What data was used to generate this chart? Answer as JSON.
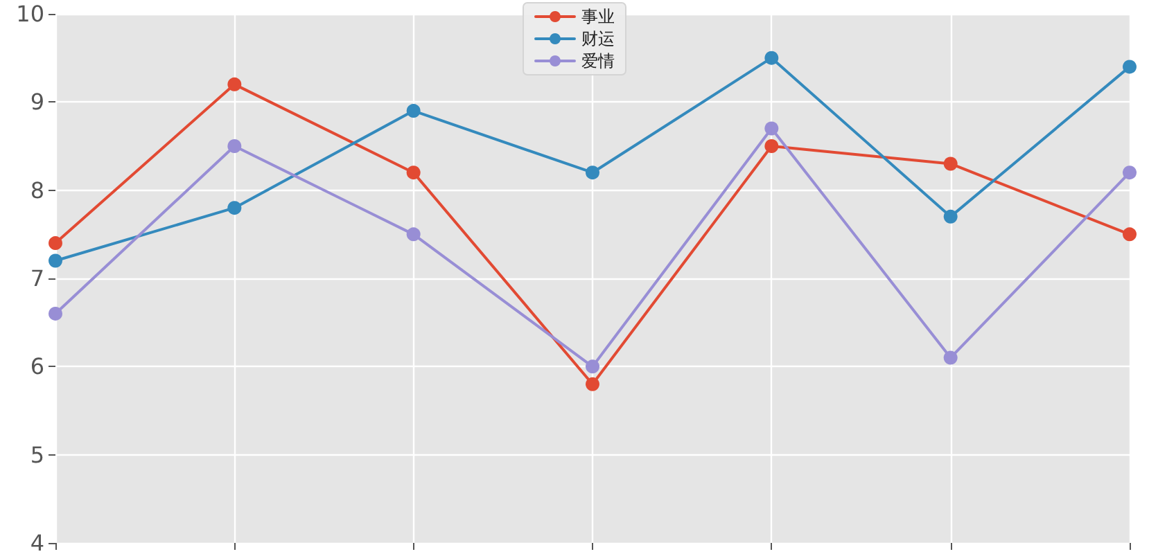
{
  "chart_data": {
    "type": "line",
    "categories": [
      null,
      null,
      null,
      null,
      null,
      null,
      null
    ],
    "series": [
      {
        "name": "事业",
        "color": "#e24a33",
        "values": [
          7.4,
          9.2,
          8.2,
          5.8,
          8.5,
          8.3,
          7.5
        ]
      },
      {
        "name": "财运",
        "color": "#348abd",
        "values": [
          7.2,
          7.8,
          8.9,
          8.2,
          9.5,
          7.7,
          9.4
        ]
      },
      {
        "name": "爱情",
        "color": "#988ed5",
        "values": [
          6.6,
          8.5,
          7.5,
          6.0,
          8.7,
          6.1,
          8.2
        ]
      }
    ],
    "ylim": [
      4,
      10
    ],
    "yticks": [
      4,
      5,
      6,
      7,
      8,
      9,
      10
    ],
    "grid": true,
    "legend": "top",
    "marker": "circle",
    "line_style": "solid",
    "tick_labels": "y"
  }
}
